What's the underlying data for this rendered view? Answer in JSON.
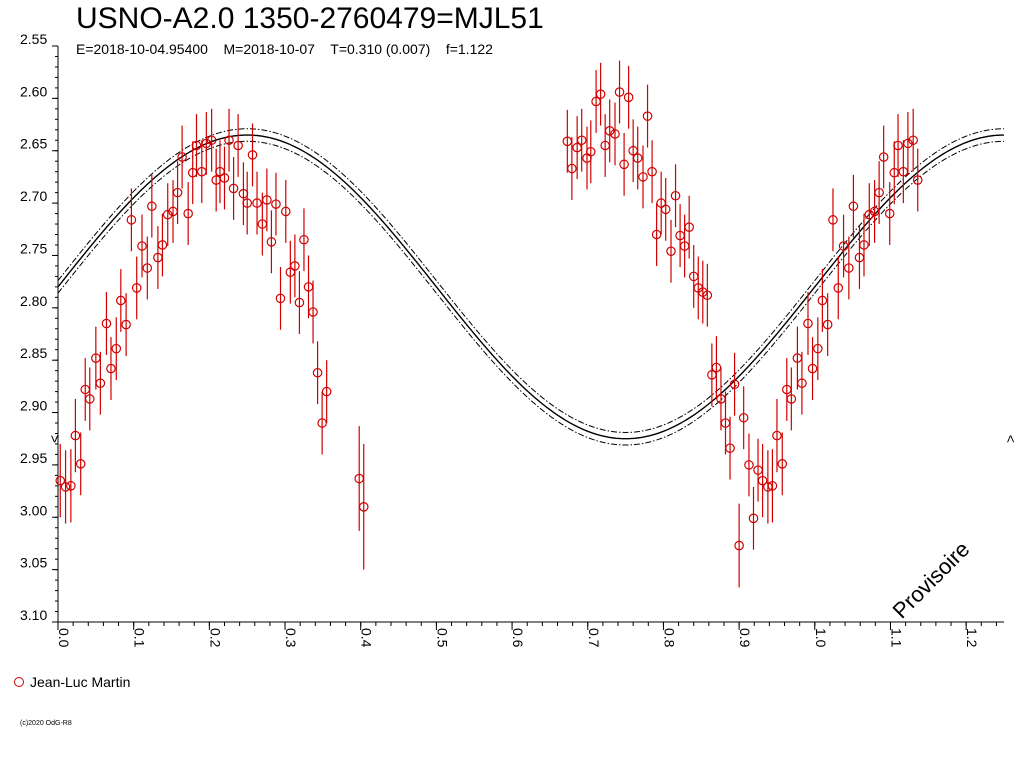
{
  "header": {
    "title": "USNO-A2.0 1350-2760479=MJL51",
    "subtitle": "E=2018-10-04.95400    M=2018-10-07    T=0.310 (0.007)    f=1.122"
  },
  "legend": {
    "observer": "Jean-Luc Martin",
    "marker_color": "#d10000"
  },
  "footer": {
    "copyright": "(c)2020 OdG-R8",
    "watermark": "Provisoire"
  },
  "side_markers": {
    "left": ">",
    "right": "<"
  },
  "chart_data": {
    "type": "scatter",
    "title": "USNO-A2.0 1350-2760479=MJL51",
    "xlim": [
      0.0,
      1.25
    ],
    "ylim": [
      2.55,
      3.1
    ],
    "y_inverted": true,
    "x_ticks": [
      "0.0",
      "0.1",
      "0.2",
      "0.3",
      "0.4",
      "0.5",
      "0.6",
      "0.7",
      "0.8",
      "0.9",
      "1.0",
      "1.1",
      "1.2"
    ],
    "y_ticks": [
      "2.55",
      "2.60",
      "2.65",
      "2.70",
      "2.75",
      "2.80",
      "2.85",
      "2.90",
      "2.95",
      "3.00",
      "3.05",
      "3.10"
    ],
    "grid": false,
    "model_curve": {
      "center": 2.78,
      "amplitude": 0.145,
      "max_phase": 0.25,
      "band": 0.006,
      "color": "#000000"
    },
    "series": [
      {
        "name": "Jean-Luc Martin",
        "color": "#d10000",
        "points": [
          [
            0.003,
            2.965,
            0.035
          ],
          [
            0.01,
            2.971,
            0.035
          ],
          [
            0.017,
            2.97,
            0.035
          ],
          [
            0.023,
            2.922,
            0.035
          ],
          [
            0.03,
            2.949,
            0.03
          ],
          [
            0.036,
            2.878,
            0.03
          ],
          [
            0.042,
            2.887,
            0.03
          ],
          [
            0.05,
            2.848,
            0.03
          ],
          [
            0.056,
            2.872,
            0.03
          ],
          [
            0.064,
            2.815,
            0.03
          ],
          [
            0.07,
            2.858,
            0.03
          ],
          [
            0.077,
            2.839,
            0.03
          ],
          [
            0.083,
            2.793,
            0.03
          ],
          [
            0.09,
            2.816,
            0.03
          ],
          [
            0.097,
            2.716,
            0.03
          ],
          [
            0.104,
            2.781,
            0.03
          ],
          [
            0.111,
            2.741,
            0.03
          ],
          [
            0.118,
            2.762,
            0.03
          ],
          [
            0.124,
            2.703,
            0.03
          ],
          [
            0.132,
            2.752,
            0.03
          ],
          [
            0.138,
            2.74,
            0.03
          ],
          [
            0.145,
            2.711,
            0.03
          ],
          [
            0.152,
            2.708,
            0.03
          ],
          [
            0.158,
            2.69,
            0.03
          ],
          [
            0.164,
            2.656,
            0.03
          ],
          [
            0.172,
            2.71,
            0.03
          ],
          [
            0.178,
            2.671,
            0.03
          ],
          [
            0.183,
            2.645,
            0.03
          ],
          [
            0.19,
            2.67,
            0.03
          ],
          [
            0.196,
            2.643,
            0.03
          ],
          [
            0.203,
            2.64,
            0.03
          ],
          [
            0.209,
            2.678,
            0.03
          ],
          [
            0.214,
            2.67,
            0.03
          ],
          [
            0.22,
            2.676,
            0.03
          ],
          [
            0.226,
            2.64,
            0.03
          ],
          [
            0.232,
            2.686,
            0.03
          ],
          [
            0.238,
            2.645,
            0.03
          ],
          [
            0.245,
            2.691,
            0.03
          ],
          [
            0.25,
            2.7,
            0.03
          ],
          [
            0.257,
            2.654,
            0.03
          ],
          [
            0.263,
            2.7,
            0.03
          ],
          [
            0.27,
            2.72,
            0.03
          ],
          [
            0.276,
            2.697,
            0.03
          ],
          [
            0.282,
            2.737,
            0.03
          ],
          [
            0.288,
            2.701,
            0.03
          ],
          [
            0.294,
            2.791,
            0.03
          ],
          [
            0.301,
            2.708,
            0.03
          ],
          [
            0.307,
            2.766,
            0.03
          ],
          [
            0.313,
            2.76,
            0.03
          ],
          [
            0.319,
            2.795,
            0.03
          ],
          [
            0.325,
            2.735,
            0.03
          ],
          [
            0.331,
            2.78,
            0.03
          ],
          [
            0.337,
            2.804,
            0.03
          ],
          [
            0.343,
            2.862,
            0.03
          ],
          [
            0.349,
            2.91,
            0.03
          ],
          [
            0.355,
            2.88,
            0.03
          ],
          [
            0.398,
            2.963,
            0.05
          ],
          [
            0.404,
            2.99,
            0.06
          ],
          [
            0.673,
            2.641,
            0.03
          ],
          [
            0.679,
            2.667,
            0.03
          ],
          [
            0.686,
            2.647,
            0.03
          ],
          [
            0.692,
            2.64,
            0.03
          ],
          [
            0.699,
            2.657,
            0.03
          ],
          [
            0.704,
            2.651,
            0.03
          ],
          [
            0.711,
            2.603,
            0.03
          ],
          [
            0.717,
            2.596,
            0.03
          ],
          [
            0.723,
            2.645,
            0.03
          ],
          [
            0.729,
            2.631,
            0.03
          ],
          [
            0.736,
            2.634,
            0.03
          ],
          [
            0.742,
            2.594,
            0.03
          ],
          [
            0.748,
            2.663,
            0.03
          ],
          [
            0.754,
            2.599,
            0.03
          ],
          [
            0.76,
            2.65,
            0.03
          ],
          [
            0.766,
            2.657,
            0.03
          ],
          [
            0.773,
            2.675,
            0.03
          ],
          [
            0.779,
            2.617,
            0.03
          ],
          [
            0.785,
            2.67,
            0.03
          ],
          [
            0.791,
            2.73,
            0.03
          ],
          [
            0.797,
            2.7,
            0.03
          ],
          [
            0.803,
            2.706,
            0.03
          ],
          [
            0.81,
            2.746,
            0.03
          ],
          [
            0.816,
            2.693,
            0.03
          ],
          [
            0.822,
            2.731,
            0.03
          ],
          [
            0.828,
            2.741,
            0.03
          ],
          [
            0.834,
            2.723,
            0.03
          ],
          [
            0.84,
            2.77,
            0.03
          ],
          [
            0.846,
            2.781,
            0.03
          ],
          [
            0.852,
            2.785,
            0.03
          ],
          [
            0.858,
            2.788,
            0.03
          ],
          [
            0.864,
            2.864,
            0.03
          ],
          [
            0.87,
            2.857,
            0.03
          ],
          [
            0.876,
            2.887,
            0.03
          ],
          [
            0.882,
            2.91,
            0.03
          ],
          [
            0.888,
            2.934,
            0.03
          ],
          [
            0.894,
            2.873,
            0.03
          ],
          [
            0.9,
            3.027,
            0.04
          ],
          [
            0.906,
            2.905,
            0.03
          ],
          [
            0.913,
            2.95,
            0.03
          ],
          [
            0.919,
            3.001,
            0.03
          ],
          [
            0.925,
            2.955,
            0.03
          ],
          [
            0.931,
            2.965,
            0.035
          ],
          [
            0.938,
            2.971,
            0.035
          ],
          [
            0.944,
            2.97,
            0.035
          ],
          [
            0.95,
            2.922,
            0.035
          ],
          [
            0.957,
            2.949,
            0.03
          ],
          [
            0.963,
            2.878,
            0.03
          ],
          [
            0.969,
            2.887,
            0.03
          ],
          [
            0.977,
            2.848,
            0.03
          ],
          [
            0.983,
            2.872,
            0.03
          ],
          [
            0.991,
            2.815,
            0.03
          ],
          [
            0.997,
            2.858,
            0.03
          ],
          [
            1.004,
            2.839,
            0.03
          ],
          [
            1.01,
            2.793,
            0.03
          ],
          [
            1.017,
            2.816,
            0.03
          ],
          [
            1.024,
            2.716,
            0.03
          ],
          [
            1.031,
            2.781,
            0.03
          ],
          [
            1.038,
            2.741,
            0.03
          ],
          [
            1.045,
            2.762,
            0.03
          ],
          [
            1.051,
            2.703,
            0.03
          ],
          [
            1.059,
            2.752,
            0.03
          ],
          [
            1.065,
            2.74,
            0.03
          ],
          [
            1.072,
            2.711,
            0.03
          ],
          [
            1.079,
            2.708,
            0.03
          ],
          [
            1.085,
            2.69,
            0.03
          ],
          [
            1.091,
            2.656,
            0.03
          ],
          [
            1.099,
            2.71,
            0.03
          ],
          [
            1.105,
            2.671,
            0.03
          ],
          [
            1.11,
            2.645,
            0.03
          ],
          [
            1.117,
            2.67,
            0.03
          ],
          [
            1.123,
            2.643,
            0.03
          ],
          [
            1.13,
            2.64,
            0.03
          ],
          [
            1.136,
            2.678,
            0.03
          ]
        ]
      }
    ]
  }
}
